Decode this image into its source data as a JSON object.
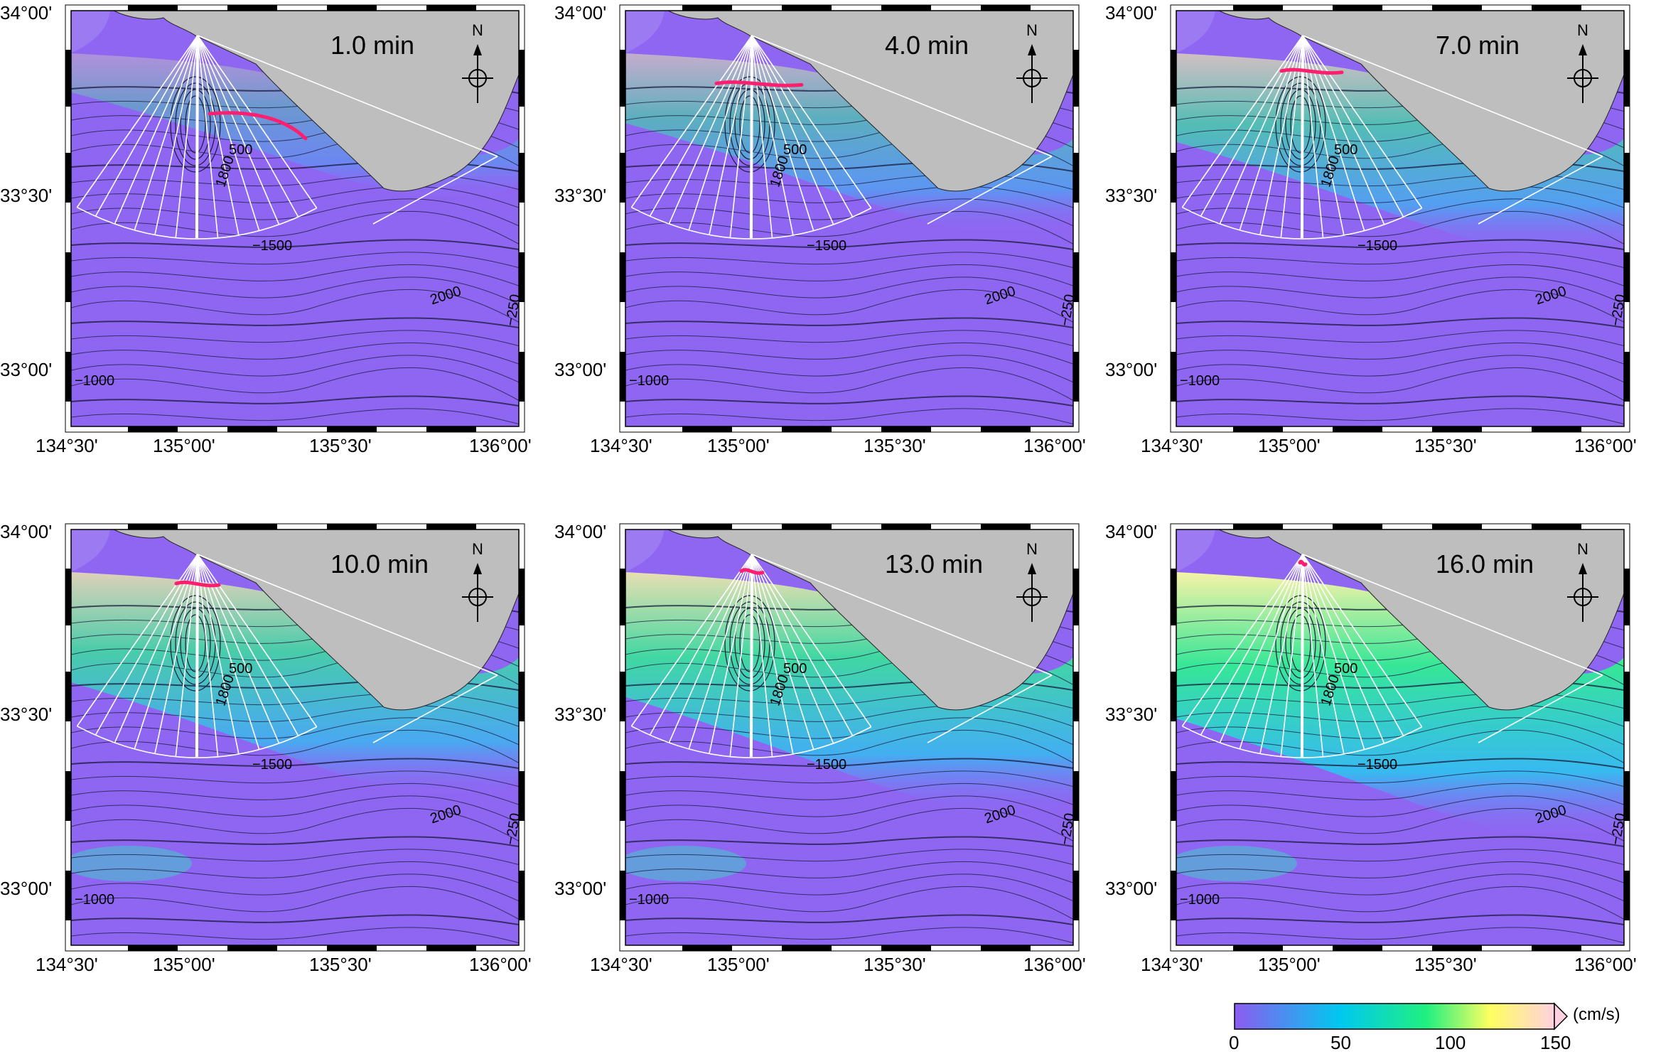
{
  "panels": [
    {
      "id": "p1",
      "time": "1.0 min"
    },
    {
      "id": "p2",
      "time": "4.0 min"
    },
    {
      "id": "p3",
      "time": "7.0 min"
    },
    {
      "id": "p4",
      "time": "10.0 min"
    },
    {
      "id": "p5",
      "time": "13.0 min"
    },
    {
      "id": "p6",
      "time": "16.0 min"
    }
  ],
  "axes": {
    "lat_labels": [
      "34°00'",
      "33°30'",
      "33°00'"
    ],
    "lon_labels": [
      "134°30'",
      "135°00'",
      "135°30'",
      "136°00'"
    ]
  },
  "contour_labels": {
    "c1000": "−1000",
    "c1500": "−1500",
    "c2000": "2000",
    "c2500": "−250",
    "c1800": "1800",
    "c500": "500"
  },
  "north_label": "N",
  "colorbar": {
    "ticks": [
      "0",
      "50",
      "100",
      "150"
    ],
    "unit": "(cm/s)",
    "colors": [
      "#8c5cf0",
      "#00c8f0",
      "#20f080",
      "#ffff60",
      "#ffd0e0"
    ]
  },
  "colors": {
    "ocean": "#8f66f2",
    "land": "#bebebe",
    "front": "#ff1f6e",
    "ray": "#ffffff",
    "contour": "#1a1a3a"
  }
}
